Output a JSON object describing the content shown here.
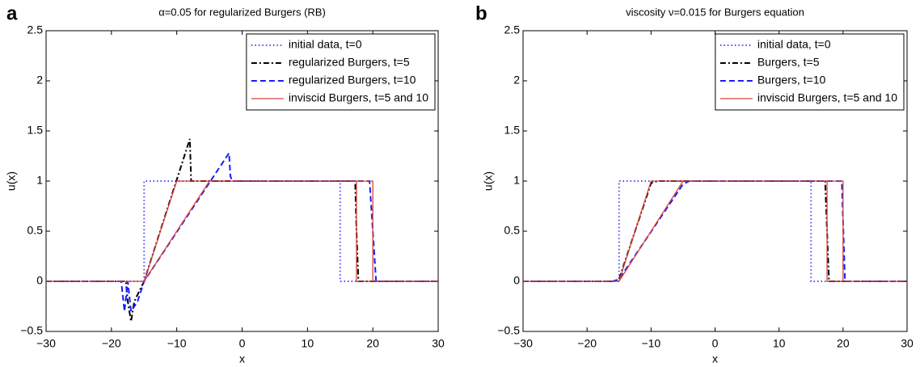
{
  "chart_data": [
    {
      "type": "line",
      "panel": "a",
      "title": "α=0.05 for regularized Burgers (RB)",
      "x_label": "x",
      "y_label": "u(x)",
      "xlim": [
        -30,
        30
      ],
      "xticks": [
        {
          "value": -30,
          "label": "−30"
        },
        {
          "value": -20,
          "label": "−20"
        },
        {
          "value": -10,
          "label": "−10"
        },
        0,
        10,
        20,
        30
      ],
      "ylim": [
        -0.5,
        2.5
      ],
      "yticks": [
        {
          "value": -0.5,
          "label": "−0.5"
        },
        0,
        0.5,
        1,
        1.5,
        2,
        2.5
      ],
      "legend": "northeast",
      "series": [
        {
          "name": "initial data, t=0",
          "color": "#4a4aff",
          "dash": "dotted",
          "x": [
            -30,
            -15,
            -15,
            15,
            15,
            30
          ],
          "values": [
            0,
            0,
            1,
            1,
            0,
            0
          ]
        },
        {
          "name": "regularized Burgers, t=5",
          "color": "#000000",
          "dash": "dashdot",
          "x": [
            -30,
            -17.8,
            -17.5,
            -17,
            -16.5,
            -15,
            -8,
            -7.8,
            -7.5,
            17.3,
            17.5,
            17.8,
            30
          ],
          "values": [
            0,
            0,
            -0.2,
            -0.4,
            -0.2,
            0,
            1.42,
            1,
            1,
            1,
            0.5,
            0,
            0
          ]
        },
        {
          "name": "regularized Burgers, t=10",
          "color": "#1a1aff",
          "dash": "dashed",
          "x": [
            -30,
            -18.5,
            -18,
            -17.5,
            -17,
            -16,
            -15,
            -2,
            -1.8,
            -1.5,
            19.5,
            20,
            20.5,
            30
          ],
          "values": [
            0,
            0,
            -0.3,
            0,
            -0.3,
            -0.2,
            0,
            1.28,
            1.05,
            1,
            1,
            0.5,
            0,
            0
          ]
        },
        {
          "name": "inviscid Burgers, t=5 and 10",
          "color": "#d9433a",
          "dash": "solid",
          "x": [
            -30,
            -15,
            -10,
            17.5,
            17.5,
            30,
            0,
            -30,
            -15,
            -5,
            20,
            20,
            30
          ],
          "values": [
            0,
            0,
            1,
            1,
            0,
            0,
            null,
            0,
            0,
            1,
            1,
            0,
            0
          ]
        }
      ]
    },
    {
      "type": "line",
      "panel": "b",
      "title": "viscosity ν=0.015 for Burgers equation",
      "x_label": "x",
      "y_label": "u(x)",
      "xlim": [
        -30,
        30
      ],
      "xticks": [
        {
          "value": -30,
          "label": "−30"
        },
        {
          "value": -20,
          "label": "−20"
        },
        {
          "value": -10,
          "label": "−10"
        },
        0,
        10,
        20,
        30
      ],
      "ylim": [
        -0.5,
        2.5
      ],
      "yticks": [
        {
          "value": -0.5,
          "label": "−0.5"
        },
        0,
        0.5,
        1,
        1.5,
        2,
        2.5
      ],
      "legend": "northeast",
      "series": [
        {
          "name": "initial data, t=0",
          "color": "#4a4aff",
          "dash": "dotted",
          "x": [
            -30,
            -15,
            -15,
            15,
            15,
            30
          ],
          "values": [
            0,
            0,
            1,
            1,
            0,
            0
          ]
        },
        {
          "name": "Burgers, t=5",
          "color": "#000000",
          "dash": "dashdot",
          "x": [
            -30,
            -16,
            -15,
            -10,
            -9,
            17.2,
            17.8,
            30
          ],
          "values": [
            0,
            0,
            0.02,
            0.98,
            1,
            1,
            0,
            0
          ]
        },
        {
          "name": "Burgers, t=10",
          "color": "#1a1aff",
          "dash": "dashed",
          "x": [
            -30,
            -16,
            -15,
            -5,
            -4,
            19.8,
            20.3,
            30
          ],
          "values": [
            0,
            0,
            0.02,
            0.97,
            1,
            1,
            0,
            0
          ]
        },
        {
          "name": "inviscid Burgers, t=5 and 10",
          "color": "#d9433a",
          "dash": "solid",
          "x": [
            -30,
            -15,
            -10,
            17.5,
            17.5,
            30,
            0,
            -30,
            -15,
            -5,
            20,
            20,
            30
          ],
          "values": [
            0,
            0,
            1,
            1,
            0,
            0,
            null,
            0,
            0,
            1,
            1,
            0,
            0
          ]
        }
      ]
    }
  ]
}
